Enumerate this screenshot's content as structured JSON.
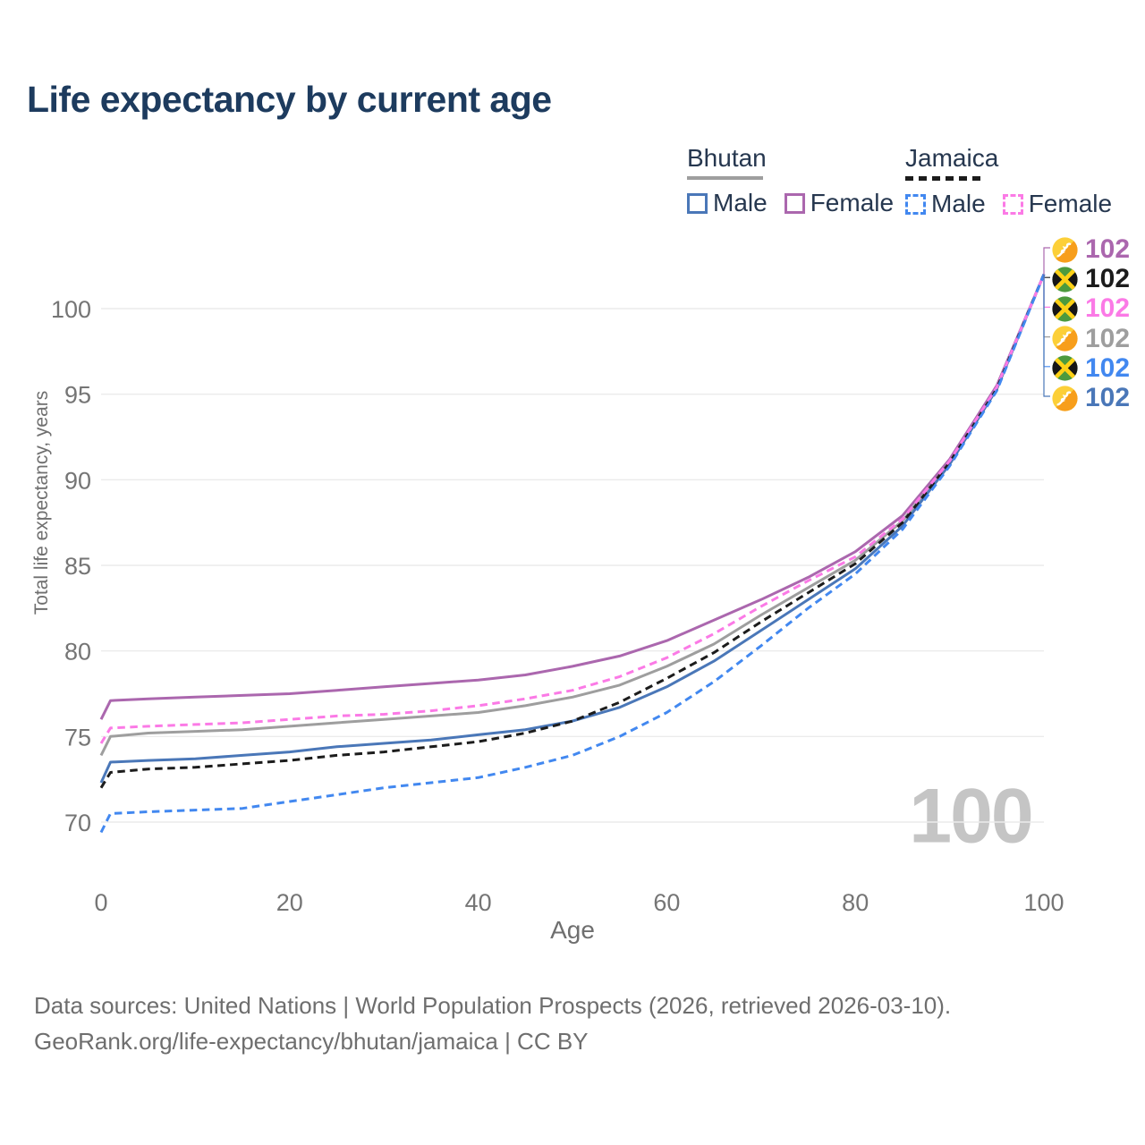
{
  "title": "Life expectancy by current age",
  "watermark": "100",
  "legend": {
    "bhutan": {
      "label": "Bhutan",
      "male_label": "Male",
      "female_label": "Female"
    },
    "jamaica": {
      "label": "Jamaica",
      "male_label": "Male",
      "female_label": "Female"
    }
  },
  "footer": {
    "line1": "Data sources: United Nations | World Population Prospects (2026, retrieved 2026-03-10).",
    "line2": "GeoRank.org/life-expectancy/bhutan/jamaica | CC BY"
  },
  "chart_data": {
    "type": "line",
    "title": "Life expectancy by current age",
    "xlabel": "Age",
    "ylabel": "Total life expectancy, years",
    "xlim": [
      0,
      100
    ],
    "ylim": [
      68,
      103
    ],
    "xticks": [
      0,
      20,
      40,
      60,
      80,
      100
    ],
    "yticks": [
      70,
      75,
      80,
      85,
      90,
      95,
      100
    ],
    "grid": "horizontal-only",
    "legend_position": "top-right",
    "x_ages": [
      0,
      1,
      5,
      10,
      15,
      20,
      25,
      30,
      35,
      40,
      45,
      50,
      55,
      60,
      65,
      70,
      75,
      80,
      85,
      90,
      95,
      100
    ],
    "series": [
      {
        "id": "bhutan_total",
        "name": "Bhutan (both sexes)",
        "country": "Bhutan",
        "color": "#9e9e9e",
        "dashed": false,
        "values": [
          73.9,
          75.0,
          75.2,
          75.3,
          75.4,
          75.6,
          75.8,
          76.0,
          76.2,
          76.4,
          76.8,
          77.3,
          78.0,
          79.1,
          80.4,
          82.1,
          83.7,
          85.3,
          87.6,
          91.0,
          95.4,
          102
        ]
      },
      {
        "id": "bhutan_female",
        "name": "Bhutan Female",
        "country": "Bhutan",
        "color": "#ab67ae",
        "dashed": false,
        "values": [
          76.0,
          77.1,
          77.2,
          77.3,
          77.4,
          77.5,
          77.7,
          77.9,
          78.1,
          78.3,
          78.6,
          79.1,
          79.7,
          80.6,
          81.8,
          83.0,
          84.3,
          85.8,
          87.9,
          91.2,
          95.5,
          102
        ]
      },
      {
        "id": "bhutan_male",
        "name": "Bhutan Male",
        "country": "Bhutan",
        "color": "#4a77b8",
        "dashed": false,
        "values": [
          72.3,
          73.5,
          73.6,
          73.7,
          73.9,
          74.1,
          74.4,
          74.6,
          74.8,
          75.1,
          75.4,
          75.9,
          76.7,
          77.9,
          79.4,
          81.2,
          83.0,
          84.8,
          87.3,
          90.9,
          95.3,
          102
        ]
      },
      {
        "id": "jamaica_total",
        "name": "Jamaica (both sexes)",
        "country": "Jamaica",
        "color": "#1c1c1c",
        "dashed": true,
        "values": [
          72.0,
          72.9,
          73.1,
          73.2,
          73.4,
          73.6,
          73.9,
          74.1,
          74.4,
          74.7,
          75.2,
          75.9,
          77.0,
          78.4,
          79.9,
          81.7,
          83.4,
          85.1,
          87.5,
          91.0,
          95.3,
          102
        ]
      },
      {
        "id": "jamaica_female",
        "name": "Jamaica Female",
        "country": "Jamaica",
        "color": "#fb7ae6",
        "dashed": true,
        "values": [
          74.6,
          75.5,
          75.6,
          75.7,
          75.8,
          76.0,
          76.2,
          76.3,
          76.5,
          76.8,
          77.2,
          77.7,
          78.5,
          79.6,
          81.0,
          82.6,
          84.1,
          85.5,
          87.7,
          91.1,
          95.4,
          102
        ]
      },
      {
        "id": "jamaica_male",
        "name": "Jamaica Male",
        "country": "Jamaica",
        "color": "#4288f0",
        "dashed": true,
        "values": [
          69.4,
          70.5,
          70.6,
          70.7,
          70.8,
          71.2,
          71.6,
          72.0,
          72.3,
          72.6,
          73.2,
          73.9,
          75.0,
          76.4,
          78.2,
          80.3,
          82.5,
          84.5,
          87.1,
          90.8,
          95.2,
          102
        ]
      }
    ],
    "end_labels": [
      {
        "flag": "bhutan",
        "series": "bhutan_female",
        "value": "102",
        "color": "#ab67ae"
      },
      {
        "flag": "jamaica",
        "series": "jamaica_total",
        "value": "102",
        "color": "#1c1c1c"
      },
      {
        "flag": "jamaica",
        "series": "jamaica_female",
        "value": "102",
        "color": "#fb7ae6"
      },
      {
        "flag": "bhutan",
        "series": "bhutan_total",
        "value": "102",
        "color": "#9e9e9e"
      },
      {
        "flag": "jamaica",
        "series": "jamaica_male",
        "value": "102",
        "color": "#4288f0"
      },
      {
        "flag": "bhutan",
        "series": "bhutan_male",
        "value": "102",
        "color": "#4a77b8"
      }
    ]
  }
}
